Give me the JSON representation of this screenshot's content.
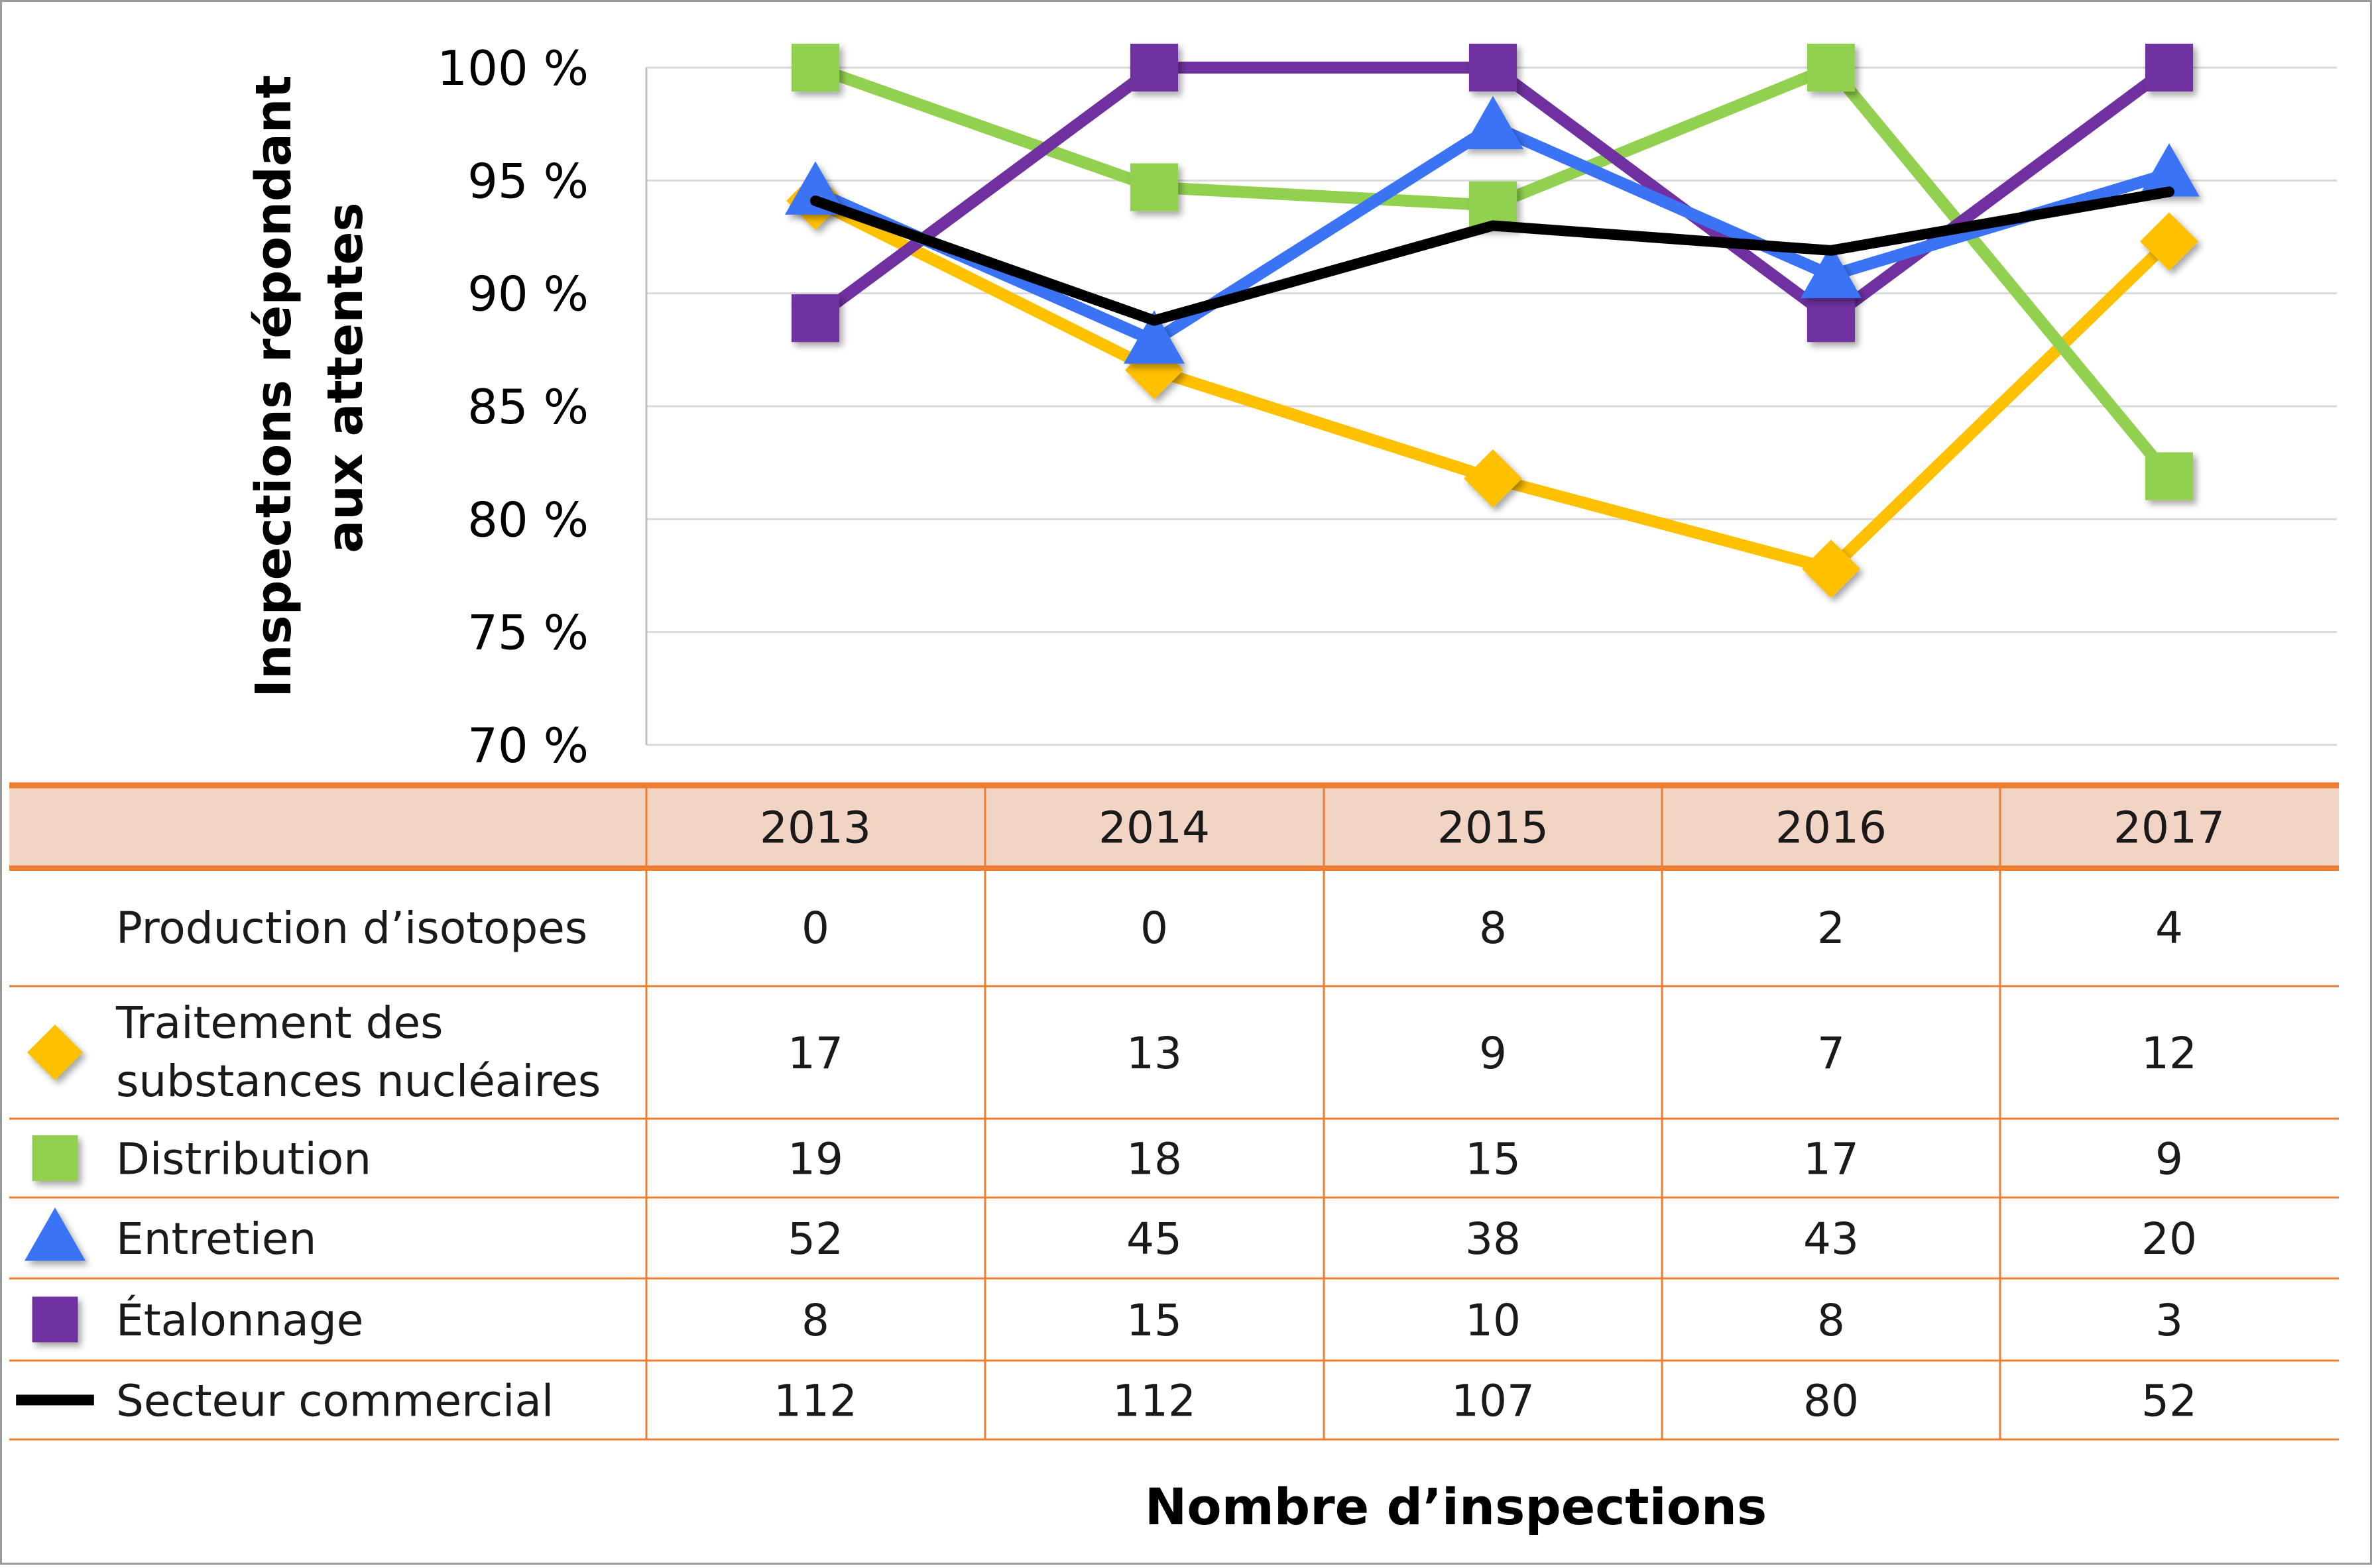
{
  "chart_data": {
    "type": "line",
    "ylabel_lines": [
      "Inspections répondant",
      "aux attentes"
    ],
    "xlabel": "Nombre d’inspections",
    "ylim": [
      70,
      100
    ],
    "y_ticks": [
      {
        "value": 100,
        "label": "100 %"
      },
      {
        "value": 95,
        "label": "95 %"
      },
      {
        "value": 90,
        "label": "90 %"
      },
      {
        "value": 85,
        "label": "85 %"
      },
      {
        "value": 80,
        "label": "80 %"
      },
      {
        "value": 75,
        "label": "75 %"
      },
      {
        "value": 70,
        "label": "70 %"
      }
    ],
    "grid": true,
    "x": [
      "2013",
      "2014",
      "2015",
      "2016",
      "2017"
    ],
    "series": [
      {
        "name": "Traitement des substances nucléaires",
        "marker": "diamond",
        "color": "#FFC000",
        "values": [
          94.1,
          86.6,
          81.8,
          77.8,
          92.3
        ]
      },
      {
        "name": "Distribution",
        "marker": "square",
        "color": "#92D050",
        "values": [
          100,
          94.7,
          93.9,
          100,
          81.9
        ]
      },
      {
        "name": "Entretien",
        "marker": "triangle",
        "color": "#3B73F5",
        "values": [
          94.5,
          87.9,
          97.4,
          90.8,
          95.3
        ]
      },
      {
        "name": "Étalonnage",
        "marker": "square",
        "color": "#7030A0",
        "values": [
          88.9,
          100,
          100,
          88.9,
          100
        ]
      },
      {
        "name": "Secteur commercial",
        "marker": "none",
        "color": "#000000",
        "values": [
          94.1,
          88.8,
          93.0,
          91.9,
          94.5
        ]
      }
    ],
    "table": {
      "header": [
        "",
        "2013",
        "2014",
        "2015",
        "2016",
        "2017"
      ],
      "rows": [
        {
          "label": "Production d’isotopes",
          "marker": "none",
          "color": "",
          "values": [
            "0",
            "0",
            "8",
            "2",
            "4"
          ]
        },
        {
          "label": "Traitement des substances nucléaires",
          "label_lines": [
            "Traitement des",
            "substances nucléaires"
          ],
          "marker": "diamond",
          "color": "#FFC000",
          "values": [
            "17",
            "13",
            "9",
            "7",
            "12"
          ]
        },
        {
          "label": "Distribution",
          "marker": "square",
          "color": "#92D050",
          "values": [
            "19",
            "18",
            "15",
            "17",
            "9"
          ]
        },
        {
          "label": "Entretien",
          "marker": "triangle",
          "color": "#3B73F5",
          "values": [
            "52",
            "45",
            "38",
            "43",
            "20"
          ]
        },
        {
          "label": "Étalonnage",
          "marker": "square",
          "color": "#7030A0",
          "values": [
            "8",
            "15",
            "10",
            "8",
            "3"
          ]
        },
        {
          "label": "Secteur commercial",
          "marker": "line",
          "color": "#000000",
          "values": [
            "112",
            "112",
            "107",
            "80",
            "52"
          ]
        }
      ]
    },
    "colors": {
      "table_header_bg": "#F2D4C5",
      "table_rule": "#ED7D31",
      "grid": "#D9D9D9"
    }
  }
}
